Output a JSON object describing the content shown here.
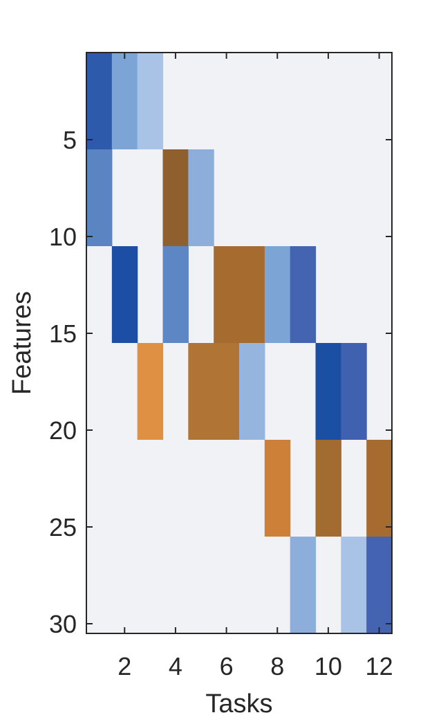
{
  "chart_data": {
    "type": "heatmap",
    "title": "",
    "xlabel": "Tasks",
    "ylabel": "Features",
    "x_ticks": [
      "2",
      "4",
      "6",
      "8",
      "10",
      "12"
    ],
    "y_ticks": [
      "5",
      "10",
      "15",
      "20",
      "25",
      "30"
    ],
    "xlim": [
      0.5,
      12.5
    ],
    "ylim": [
      0.5,
      30.5
    ],
    "y_reversed": true,
    "background_color": "#f0f2f5",
    "colorscale": "blue (negative) to white to orange/brown (positive)",
    "cells": [
      {
        "task": 1,
        "features": [
          1,
          5
        ],
        "color": "#2e5aab"
      },
      {
        "task": 2,
        "features": [
          1,
          5
        ],
        "color": "#7ca5d6"
      },
      {
        "task": 3,
        "features": [
          1,
          5
        ],
        "color": "#a8c3e6"
      },
      {
        "task": 1,
        "features": [
          6,
          10
        ],
        "color": "#5b84c3"
      },
      {
        "task": 4,
        "features": [
          6,
          10
        ],
        "color": "#8f602d"
      },
      {
        "task": 5,
        "features": [
          6,
          10
        ],
        "color": "#8daedb"
      },
      {
        "task": 2,
        "features": [
          11,
          15
        ],
        "color": "#1c4ea5"
      },
      {
        "task": 4,
        "features": [
          11,
          15
        ],
        "color": "#5d86c5"
      },
      {
        "task": 6,
        "features": [
          11,
          15
        ],
        "color": "#a66b2f"
      },
      {
        "task": 7,
        "features": [
          11,
          15
        ],
        "color": "#a66b2f"
      },
      {
        "task": 8,
        "features": [
          11,
          15
        ],
        "color": "#7ca5d6"
      },
      {
        "task": 9,
        "features": [
          11,
          15
        ],
        "color": "#4463b0"
      },
      {
        "task": 3,
        "features": [
          16,
          20
        ],
        "color": "#e09042"
      },
      {
        "task": 5,
        "features": [
          16,
          20
        ],
        "color": "#b07435"
      },
      {
        "task": 6,
        "features": [
          16,
          20
        ],
        "color": "#b07435"
      },
      {
        "task": 7,
        "features": [
          16,
          20
        ],
        "color": "#95b4de"
      },
      {
        "task": 10,
        "features": [
          16,
          20
        ],
        "color": "#1b4fa3"
      },
      {
        "task": 11,
        "features": [
          16,
          20
        ],
        "color": "#3f61af"
      },
      {
        "task": 8,
        "features": [
          21,
          25
        ],
        "color": "#cc8038"
      },
      {
        "task": 10,
        "features": [
          21,
          25
        ],
        "color": "#a26c30"
      },
      {
        "task": 12,
        "features": [
          21,
          25
        ],
        "color": "#a66b2f"
      },
      {
        "task": 9,
        "features": [
          26,
          30
        ],
        "color": "#8daedb"
      },
      {
        "task": 11,
        "features": [
          26,
          30
        ],
        "color": "#a8c3e6"
      },
      {
        "task": 12,
        "features": [
          26,
          30
        ],
        "color": "#4463b0"
      }
    ]
  }
}
